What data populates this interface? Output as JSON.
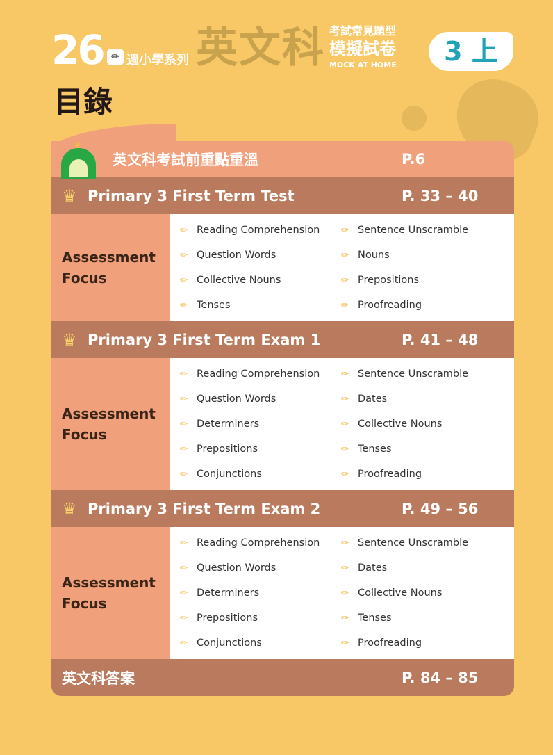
{
  "header": {
    "series_number": "26",
    "series_name": "週小學系列",
    "subject": "英文科",
    "subtitle_top": "考試常見題型",
    "subtitle_main": "模擬試卷",
    "subtitle_en": "MOCK AT HOME",
    "grade": "3 上"
  },
  "page_title": "目錄",
  "intro": {
    "label": "英文科考試前重點重溫",
    "page": "P.6"
  },
  "focus_label": "Assessment Focus",
  "sections": [
    {
      "title": "Primary 3 First Term Test",
      "pages": "P. 33 – 40",
      "items": [
        "Reading Comprehension",
        "Sentence Unscramble",
        "Question Words",
        "Nouns",
        "Collective Nouns",
        "Prepositions",
        "Tenses",
        "Proofreading"
      ]
    },
    {
      "title": "Primary 3 First Term Exam 1",
      "pages": "P. 41 – 48",
      "items": [
        "Reading Comprehension",
        "Sentence Unscramble",
        "Question Words",
        "Dates",
        "Determiners",
        "Collective Nouns",
        "Prepositions",
        "Tenses",
        "Conjunctions",
        "Proofreading"
      ]
    },
    {
      "title": "Primary 3 First Term Exam 2",
      "pages": "P. 49 – 56",
      "items": [
        "Reading Comprehension",
        "Sentence Unscramble",
        "Question Words",
        "Dates",
        "Determiners",
        "Collective Nouns",
        "Prepositions",
        "Tenses",
        "Conjunctions",
        "Proofreading"
      ]
    }
  ],
  "answers": {
    "label": "英文科答案",
    "page": "P. 84 – 85"
  },
  "colors": {
    "background": "#f9c866",
    "salmon": "#f0a07a",
    "brown": "#b97a5d",
    "accent": "#21a3b7"
  }
}
